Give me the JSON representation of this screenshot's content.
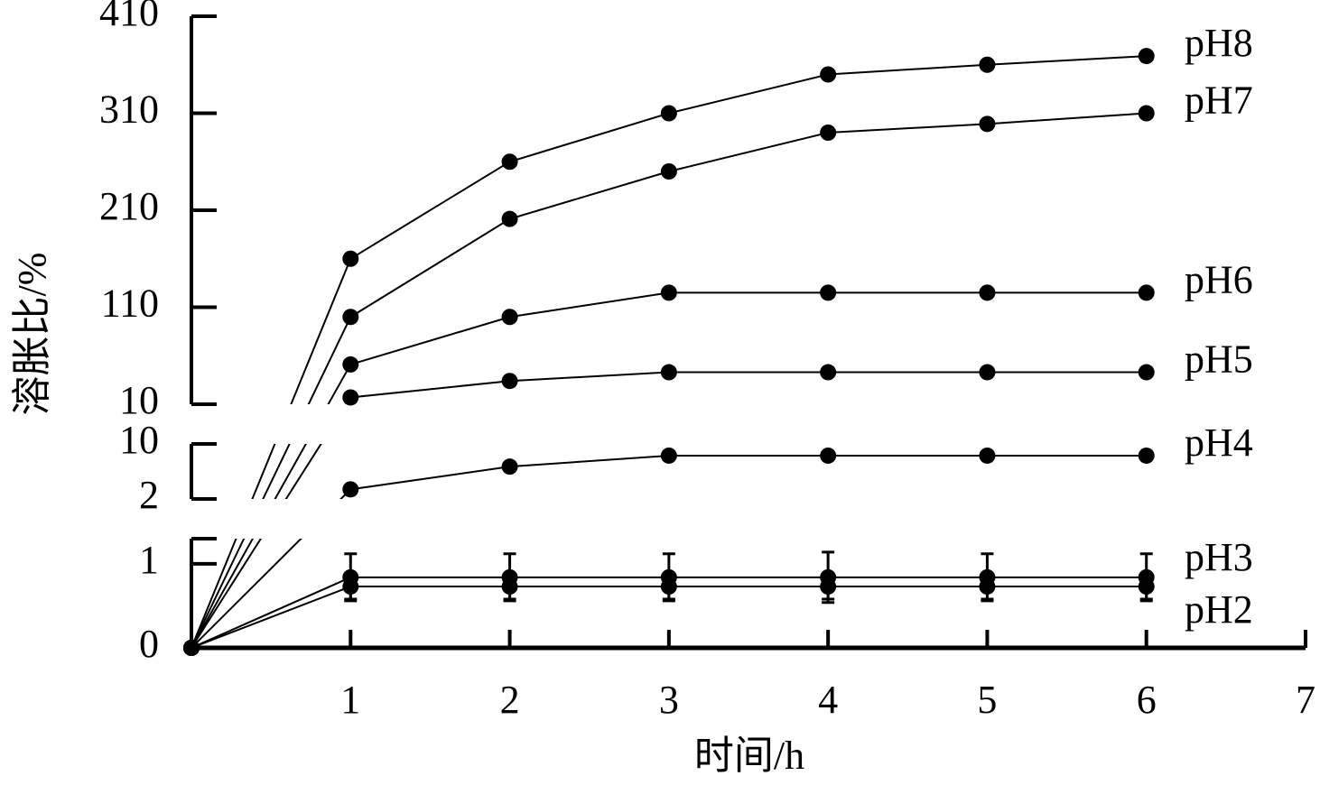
{
  "chart_data": {
    "type": "line",
    "xlabel": "时间/h",
    "ylabel": "溶胀比/%",
    "xlim": [
      0,
      7
    ],
    "xticks": [
      1,
      2,
      3,
      4,
      5,
      6,
      7
    ],
    "y_segments": [
      {
        "ylim": [
          0,
          1.3
        ],
        "yticks": [
          0,
          1
        ]
      },
      {
        "ylim": [
          2,
          10
        ],
        "yticks": [
          2,
          10
        ]
      },
      {
        "ylim": [
          10,
          410
        ],
        "yticks": [
          10,
          110,
          210,
          310,
          410
        ]
      }
    ],
    "x": [
      0,
      1,
      2,
      3,
      4,
      5,
      6
    ],
    "color": "#000000",
    "series": [
      {
        "name": "pH2",
        "values": [
          0,
          0.73,
          0.73,
          0.73,
          0.73,
          0.73,
          0.73
        ],
        "errors": [
          0,
          0.15,
          0.15,
          0.15,
          0.15,
          0.15,
          0.15
        ]
      },
      {
        "name": "pH3",
        "values": [
          0,
          0.84,
          0.84,
          0.84,
          0.84,
          0.84,
          0.84
        ],
        "errors": [
          0,
          0.28,
          0.28,
          0.28,
          0.3,
          0.28,
          0.28
        ]
      },
      {
        "name": "pH4",
        "values": [
          0,
          3.4,
          6.7,
          8.3,
          8.3,
          8.3,
          8.3
        ]
      },
      {
        "name": "pH5",
        "values": [
          0,
          17,
          34,
          43,
          43,
          43,
          43
        ]
      },
      {
        "name": "pH6",
        "values": [
          0,
          51,
          100,
          125,
          125,
          125,
          125
        ]
      },
      {
        "name": "pH7",
        "values": [
          0,
          100,
          201,
          250,
          290,
          299,
          310
        ]
      },
      {
        "name": "pH8",
        "values": [
          0,
          160,
          260,
          310,
          350,
          360,
          369
        ]
      }
    ]
  }
}
